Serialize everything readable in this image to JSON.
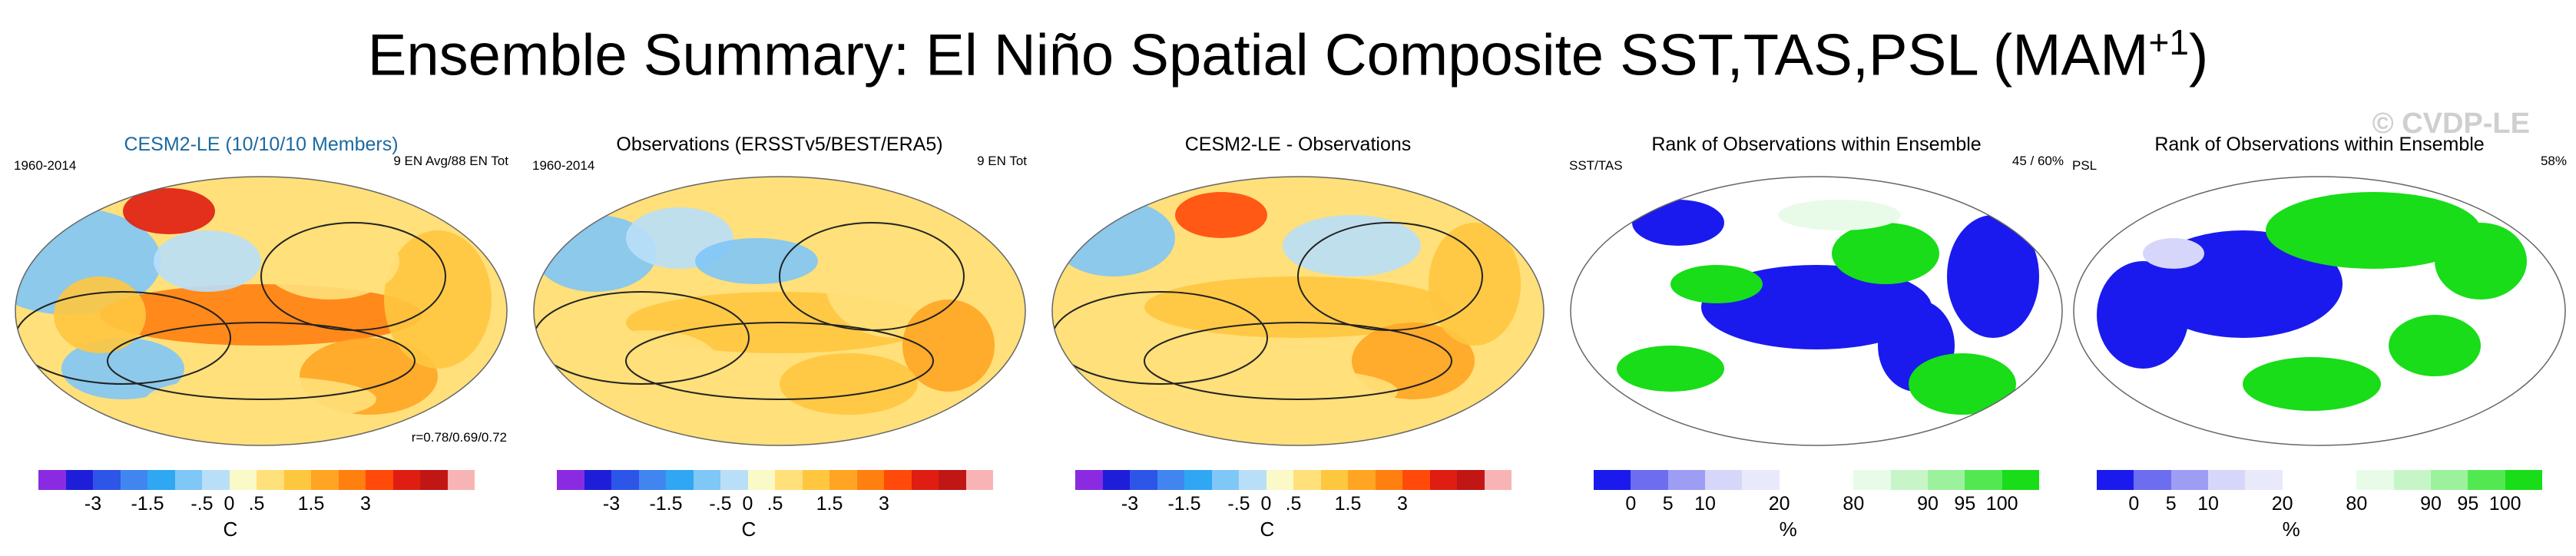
{
  "title": {
    "main": "Ensemble Summary: El Niño Spatial Composite SST,TAS,PSL (MAM",
    "sup": "+1",
    "close": ")"
  },
  "watermark": "© CVDP-LE",
  "temp_colorbar": {
    "colors": [
      "#8a2be2",
      "#1e1ed8",
      "#2d55e8",
      "#4186f0",
      "#2fa7f2",
      "#7fc7f7",
      "#b9dff8",
      "#fafac8",
      "#ffe07a",
      "#ffc640",
      "#ffa523",
      "#ff8010",
      "#ff4a0a",
      "#e01d12",
      "#c11616",
      "#f8b4b4"
    ],
    "ticks": [
      {
        "label": "-3",
        "i": 2
      },
      {
        "label": "-1.5",
        "i": 4
      },
      {
        "label": "-.5",
        "i": 6
      },
      {
        "label": "0",
        "i": 7
      },
      {
        "label": ".5",
        "i": 8
      },
      {
        "label": "1.5",
        "i": 10
      },
      {
        "label": "3",
        "i": 12
      }
    ],
    "unit": "C"
  },
  "rank_colorbar": {
    "colors": [
      "#1a1aee",
      "#6d6df0",
      "#9d9df4",
      "#d6d6fa",
      "#e9e9fc",
      "#ffffff",
      "#ffffff",
      "#e8fbe8",
      "#c8f5c8",
      "#9cf29c",
      "#52e852",
      "#18dd18"
    ],
    "ticks": [
      {
        "label": "0",
        "i": 1
      },
      {
        "label": "5",
        "i": 2
      },
      {
        "label": "10",
        "i": 3
      },
      {
        "label": "20",
        "i": 5
      },
      {
        "label": "80",
        "i": 7
      },
      {
        "label": "90",
        "i": 9
      },
      {
        "label": "95",
        "i": 10
      },
      {
        "label": "100",
        "i": 11
      }
    ],
    "unit": "%"
  },
  "panels": [
    {
      "title": "CESM2-LE (10/10/10 Members)",
      "left": "1960-2014",
      "right": "9 EN Avg/88 EN Tot",
      "corr": "r=0.78/0.69/0.72",
      "kind": "temp",
      "title_color": "#1a6aa0"
    },
    {
      "title": "Observations (ERSSTv5/BEST/ERA5)",
      "left": "1960-2014",
      "right": "9 EN Tot",
      "corr": "",
      "kind": "temp",
      "title_color": "#000000"
    },
    {
      "title": "CESM2-LE - Observations",
      "left": "",
      "right": "",
      "corr": "",
      "kind": "temp",
      "title_color": "#000000"
    },
    {
      "title": "Rank of Observations within Ensemble",
      "left": "SST/TAS",
      "right": "45 /  60%",
      "corr": "",
      "kind": "rank",
      "title_color": "#000000"
    },
    {
      "title": "Rank of Observations within Ensemble",
      "left": "PSL",
      "right": "58%",
      "corr": "",
      "kind": "rank",
      "title_color": "#000000"
    }
  ]
}
